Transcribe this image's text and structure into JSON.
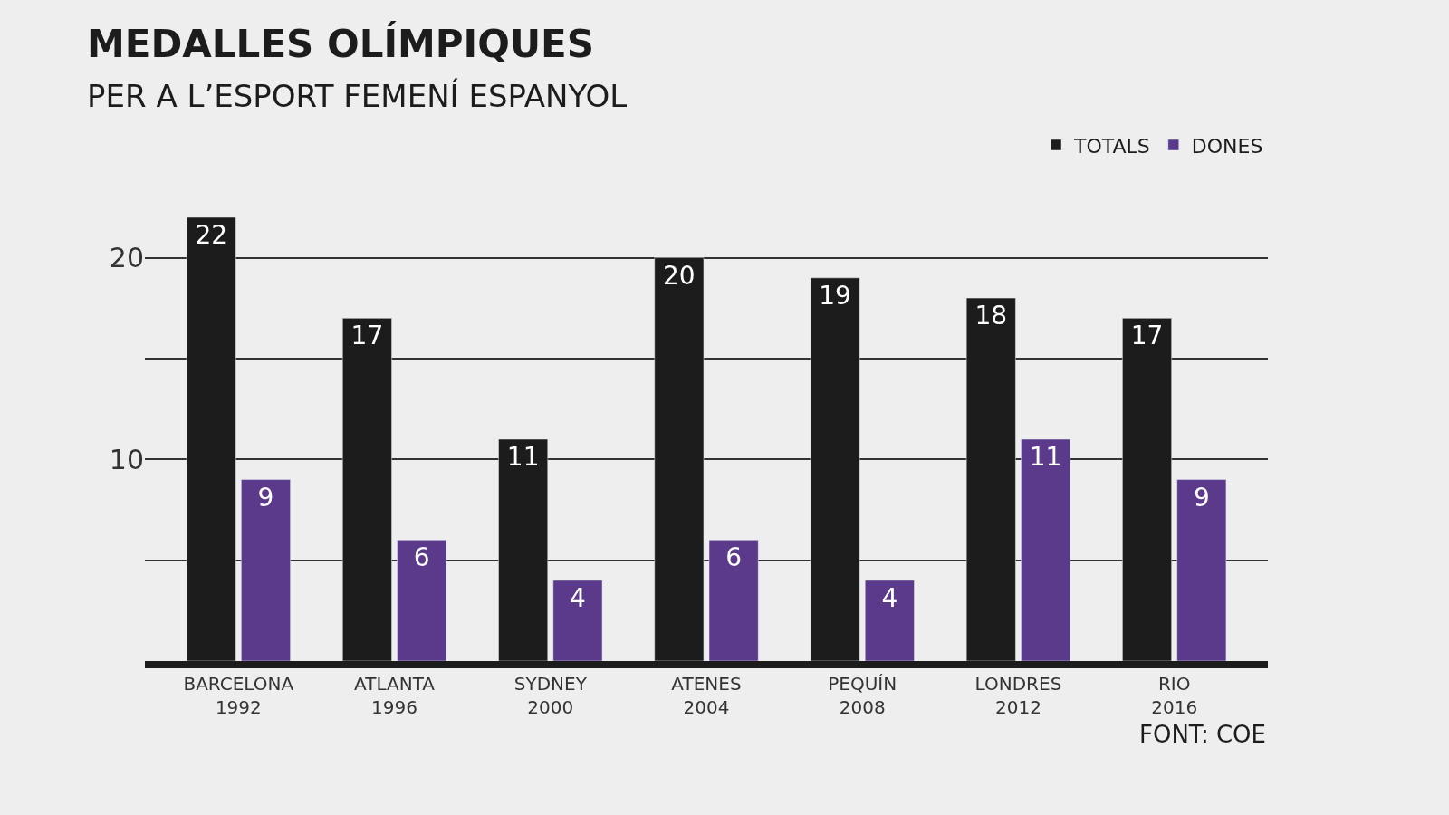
{
  "chart_data": {
    "type": "bar",
    "title": "MEDALLES OLÍMPIQUES",
    "subtitle": "PER A L’ESPORT FEMENÍ ESPANYOL",
    "categories": [
      "BARCELONA\n1992",
      "ATLANTA\n1996",
      "SYDNEY\n2000",
      "ATENES\n2004",
      "PEQUÍN\n2008",
      "LONDRES\n2012",
      "RIO\n2016"
    ],
    "series": [
      {
        "name": "TOTALS",
        "color": "#1c1c1c",
        "values": [
          22,
          17,
          11,
          20,
          19,
          18,
          17
        ]
      },
      {
        "name": "DONES",
        "color": "#5b3a8c",
        "values": [
          9,
          6,
          4,
          6,
          4,
          11,
          9
        ]
      }
    ],
    "ylim": [
      0,
      22
    ],
    "yticks": [
      {
        "value": 5,
        "label": null
      },
      10,
      {
        "value": 15,
        "label": null
      },
      20
    ],
    "grid": "y",
    "legend": "top right",
    "data_labels": true,
    "annotations": [
      "FONT: COE"
    ]
  }
}
